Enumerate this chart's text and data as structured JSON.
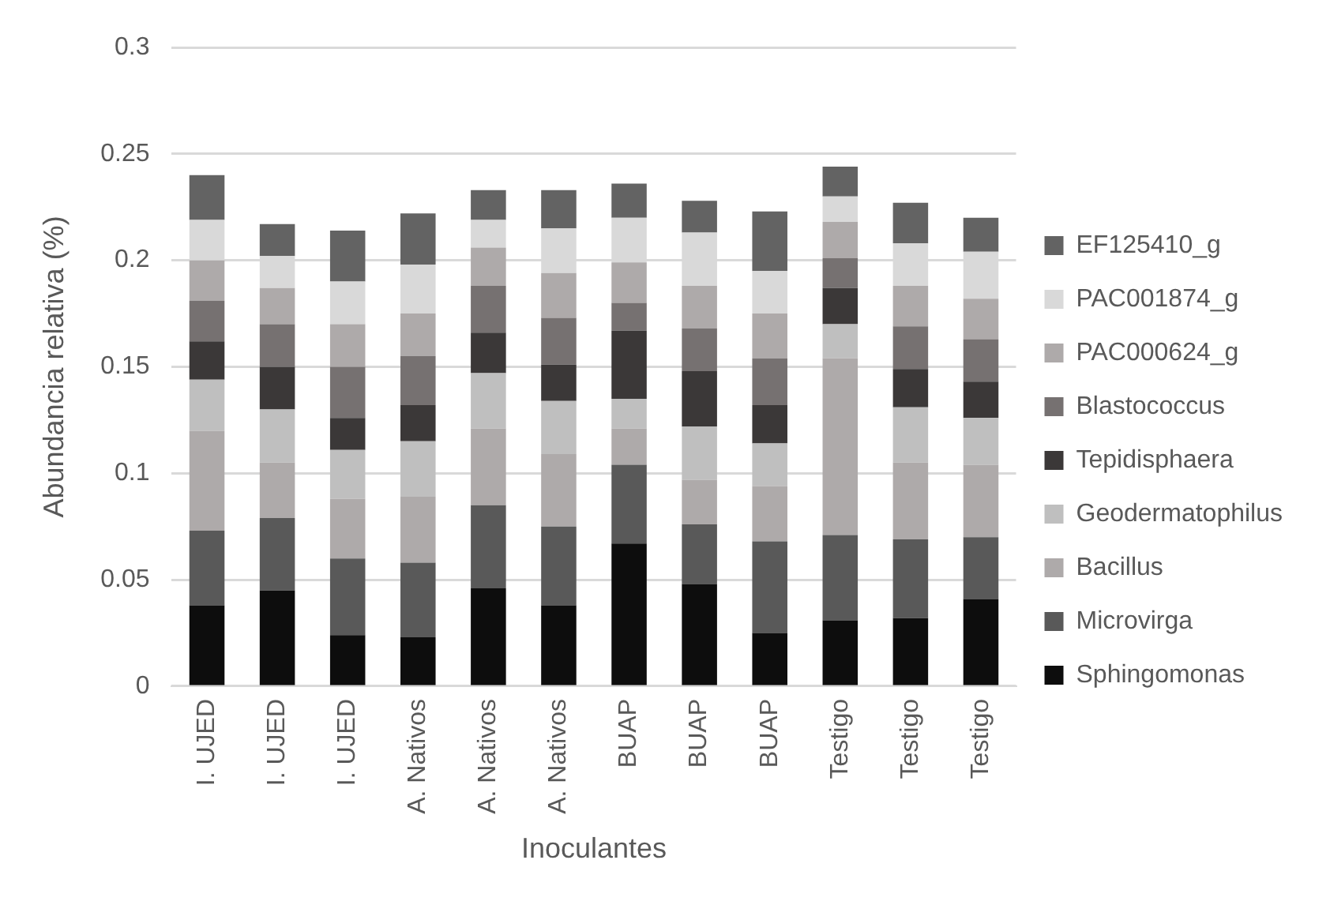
{
  "chart_data": {
    "type": "bar",
    "stacked": true,
    "xlabel": "Inoculantes",
    "ylabel": "Abundancia relativa (%)",
    "categories": [
      "I. UJED",
      "I. UJED",
      "I. UJED",
      "A. Nativos",
      "A. Nativos",
      "A. Nativos",
      "BUAP",
      "BUAP",
      "BUAP",
      "Testigo",
      "Testigo",
      "Testigo"
    ],
    "series": [
      {
        "name": "Sphingomonas",
        "color": "#0d0d0d",
        "values": [
          0.038,
          0.045,
          0.024,
          0.023,
          0.046,
          0.038,
          0.067,
          0.048,
          0.025,
          0.031,
          0.032,
          0.041
        ]
      },
      {
        "name": "Microvirga",
        "color": "#595959",
        "values": [
          0.035,
          0.034,
          0.036,
          0.035,
          0.039,
          0.037,
          0.037,
          0.028,
          0.043,
          0.04,
          0.037,
          0.029
        ]
      },
      {
        "name": "Bacillus",
        "color": "#aeaaaa",
        "values": [
          0.047,
          0.026,
          0.028,
          0.031,
          0.036,
          0.034,
          0.017,
          0.021,
          0.026,
          0.083,
          0.036,
          0.034
        ]
      },
      {
        "name": "Geodermatophilus",
        "color": "#bfbfbf",
        "values": [
          0.024,
          0.025,
          0.023,
          0.026,
          0.026,
          0.025,
          0.014,
          0.025,
          0.02,
          0.016,
          0.026,
          0.022
        ]
      },
      {
        "name": "Tepidisphaera",
        "color": "#3b3838",
        "values": [
          0.018,
          0.02,
          0.015,
          0.017,
          0.019,
          0.017,
          0.032,
          0.026,
          0.018,
          0.017,
          0.018,
          0.017
        ]
      },
      {
        "name": "Blastococcus",
        "color": "#767171",
        "values": [
          0.019,
          0.02,
          0.024,
          0.023,
          0.022,
          0.022,
          0.013,
          0.02,
          0.022,
          0.014,
          0.02,
          0.02
        ]
      },
      {
        "name": "PAC000624_g",
        "color": "#aeaaaa",
        "values": [
          0.019,
          0.017,
          0.02,
          0.02,
          0.018,
          0.021,
          0.019,
          0.02,
          0.021,
          0.017,
          0.019,
          0.019
        ]
      },
      {
        "name": "PAC001874_g",
        "color": "#d9d9d9",
        "values": [
          0.019,
          0.015,
          0.02,
          0.023,
          0.013,
          0.021,
          0.021,
          0.025,
          0.02,
          0.012,
          0.02,
          0.022
        ]
      },
      {
        "name": "EF125410_g",
        "color": "#636363",
        "values": [
          0.021,
          0.015,
          0.024,
          0.024,
          0.014,
          0.018,
          0.016,
          0.015,
          0.028,
          0.014,
          0.019,
          0.016
        ]
      }
    ],
    "ylim": [
      0,
      0.3
    ],
    "yticks": [
      0,
      0.05,
      0.1,
      0.15,
      0.2,
      0.25,
      0.3
    ],
    "grid": "y",
    "legend": "right"
  }
}
